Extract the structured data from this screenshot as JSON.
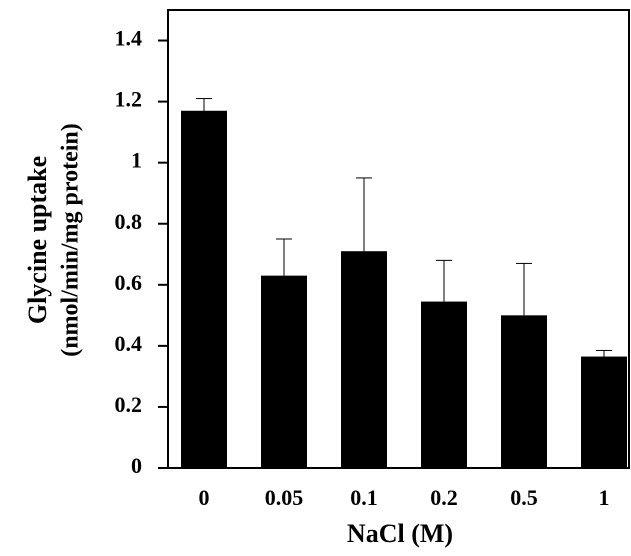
{
  "chart_data": {
    "type": "bar",
    "categories": [
      "0",
      "0.05",
      "0.1",
      "0.2",
      "0.5",
      "1"
    ],
    "values": [
      1.17,
      0.63,
      0.71,
      0.545,
      0.5,
      0.365
    ],
    "errors": [
      0.04,
      0.12,
      0.24,
      0.135,
      0.17,
      0.02
    ],
    "color": "#000000",
    "ylim": [
      0,
      1.5
    ],
    "yticks": [
      0,
      0.2,
      0.4,
      0.6,
      0.8,
      1,
      1.2,
      1.4
    ],
    "y_label": [
      "Glycine uptake",
      "(nmol/min/mg protein)"
    ],
    "x_label": "NaCl (M)"
  }
}
